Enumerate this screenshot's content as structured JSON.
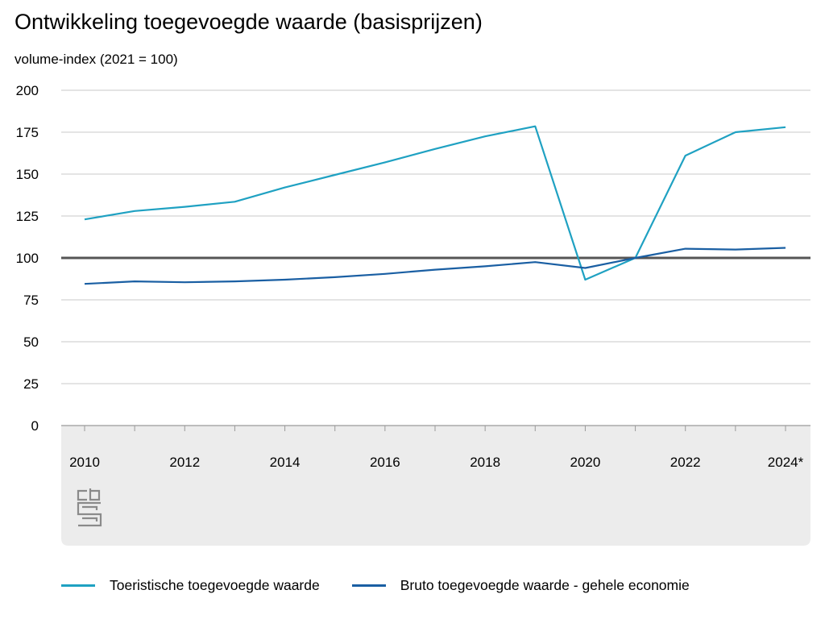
{
  "title": "Ontwikkeling toegevoegde waarde (basisprijzen)",
  "subtitle": "volume-index (2021 = 100)",
  "chart_data": {
    "type": "line",
    "title": "Ontwikkeling toegevoegde waarde (basisprijzen)",
    "ylabel": "volume-index (2021 = 100)",
    "xlabel": "",
    "x": [
      2010,
      2011,
      2012,
      2013,
      2014,
      2015,
      2016,
      2017,
      2018,
      2019,
      2020,
      2021,
      2022,
      2023,
      2024
    ],
    "x_tick_labels": [
      "2010",
      "2012",
      "2014",
      "2016",
      "2018",
      "2020",
      "2022",
      "2024*"
    ],
    "x_tick_values": [
      2010,
      2012,
      2014,
      2016,
      2018,
      2020,
      2022,
      2024
    ],
    "y_ticks": [
      0,
      25,
      50,
      75,
      100,
      125,
      150,
      175,
      200
    ],
    "ylim": [
      0,
      200
    ],
    "xlim": [
      2010,
      2024
    ],
    "grid": true,
    "reference_line": 100,
    "legend_position": "bottom",
    "series": [
      {
        "name": "Toeristische toegevoegde waarde",
        "color": "#1fa1c2",
        "values": [
          123,
          128,
          130.5,
          133.5,
          142,
          149.5,
          157,
          165,
          172.5,
          178.5,
          87,
          100,
          161,
          175,
          178
        ]
      },
      {
        "name": "Bruto toegevoegde waarde - gehele economie",
        "color": "#1a5fa3",
        "values": [
          84.5,
          86,
          85.5,
          86,
          87,
          88.5,
          90.5,
          93,
          95,
          97.5,
          94,
          100,
          105.5,
          105,
          106
        ]
      }
    ]
  },
  "colors": {
    "grid": "#c8c8c8",
    "reference": "#555555",
    "axis_band": "#ececec",
    "logo": "#8a8a8a"
  },
  "logo_icon": "cbs-logo-icon"
}
